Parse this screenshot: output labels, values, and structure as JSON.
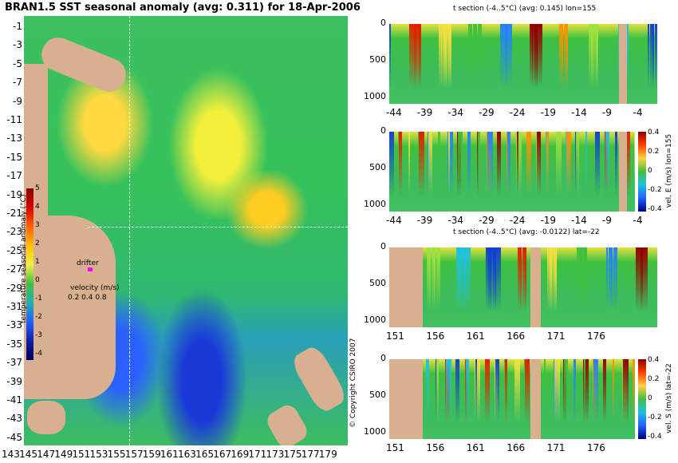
{
  "title": "BRAN1.5 SST seasonal anomaly (avg: 0.311) for 18-Apr-2006",
  "map": {
    "lat_ticks": [
      "-1",
      "-3",
      "-5",
      "-7",
      "-9",
      "-11",
      "-13",
      "-15",
      "-17",
      "-19",
      "-21",
      "-23",
      "-25",
      "-27",
      "-29",
      "-31",
      "-33",
      "-35",
      "-37",
      "-39",
      "-41",
      "-43",
      "-45"
    ],
    "lon_ticks": [
      "143",
      "145",
      "147",
      "149",
      "151",
      "153",
      "155",
      "157",
      "159",
      "161",
      "163",
      "165",
      "167",
      "169",
      "171",
      "173",
      "175",
      "177",
      "179"
    ],
    "drifter_label": "drifter",
    "velocity_label": "velocity (m/s)",
    "velocity_values": "0.2 0.4 0.8",
    "colorbar_label": "temperature seasonal anomaly (°C)",
    "colorbar_ticks": [
      "5",
      "4",
      "3",
      "2",
      "1",
      "0",
      "-1",
      "-2",
      "-3",
      "-4"
    ],
    "copyright": "© Copyright CSIRO 2007"
  },
  "panels": [
    {
      "title": "t section (-4..5°C) (avg: 0.145) lon=155",
      "y_ticks": [
        "0",
        "500",
        "1000"
      ],
      "x_ticks": [
        "-44",
        "-39",
        "-34",
        "-29",
        "-24",
        "-19",
        "-14",
        "-9",
        "-4"
      ]
    },
    {
      "title": "",
      "y_ticks": [
        "0",
        "500",
        "1000"
      ],
      "x_ticks": [
        "-44",
        "-39",
        "-34",
        "-29",
        "-24",
        "-19",
        "-14",
        "-9",
        "-4"
      ],
      "cbar_label": "vel. E (m/s) lon=155",
      "cbar_ticks": [
        "0.4",
        "0.2",
        "0",
        "-0.2",
        "-0.4"
      ]
    },
    {
      "title": "t section (-4..5°C) (avg: -0.0122) lat=-22",
      "y_ticks": [
        "0",
        "500",
        "1000"
      ],
      "x_ticks": [
        "151",
        "156",
        "161",
        "166",
        "171",
        "176"
      ]
    },
    {
      "title": "",
      "y_ticks": [
        "0",
        "500",
        "1000"
      ],
      "x_ticks": [
        "151",
        "156",
        "161",
        "166",
        "171",
        "176"
      ],
      "cbar_label": "vel. S (m/s) lat=-22",
      "cbar_ticks": [
        "0.4",
        "0.2",
        "0",
        "-0.2",
        "-0.4"
      ]
    }
  ]
}
